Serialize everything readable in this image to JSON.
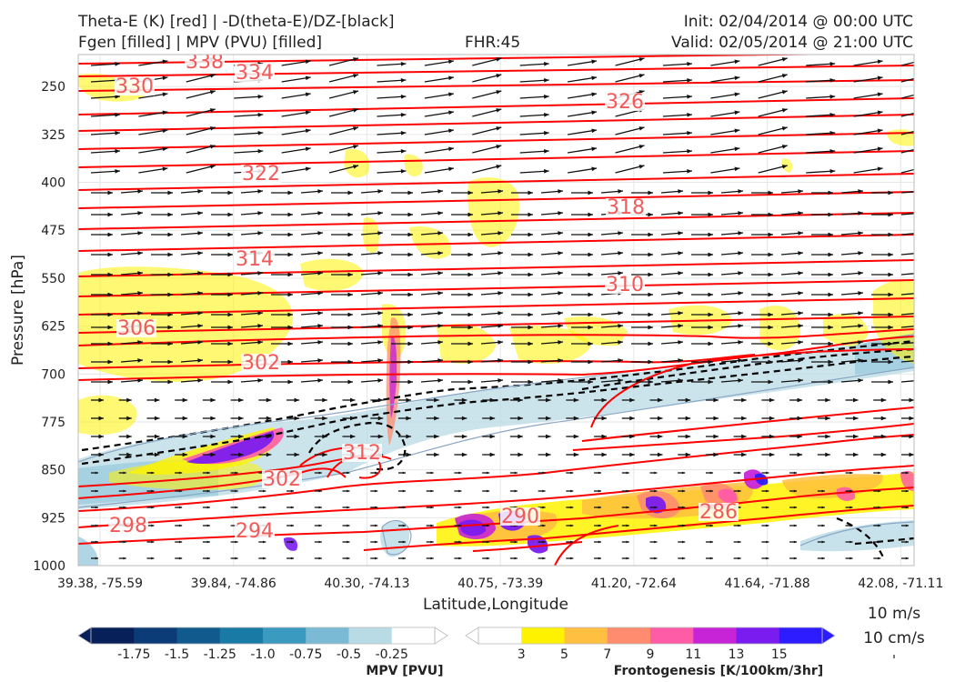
{
  "header": {
    "title_left_1": "Theta-E (K) [red] | -D(theta-E)/DZ-[black]",
    "title_left_2": "Fgen [filled] | MPV (PVU) [filled]",
    "fhr": "FHR:45",
    "init": "Init: 02/04/2014 @ 00:00 UTC",
    "valid": "Valid: 02/05/2014 @ 21:00 UTC"
  },
  "chart_data": {
    "type": "cross-section",
    "xlabel": "Latitude,Longitude",
    "ylabel": "Pressure [hPa]",
    "x_ticks": [
      "39.38, -75.59",
      "39.84, -74.86",
      "40.30, -74.13",
      "40.75, -73.39",
      "41.20, -72.64",
      "41.64, -71.88",
      "42.08, -71.11"
    ],
    "y_ticks": [
      250,
      325,
      400,
      475,
      550,
      625,
      700,
      775,
      850,
      925,
      1000
    ],
    "ylim": [
      1000,
      200
    ],
    "grid": true,
    "theta_e_contour_labels": [
      "338",
      "334",
      "330",
      "326",
      "322",
      "318",
      "314",
      "310",
      "306",
      "302",
      "302",
      "298",
      "294",
      "290",
      "286",
      "312"
    ],
    "theta_e_color": "#ff0000",
    "stability_contour_color": "#000000",
    "wind_vector_color": "#111111",
    "vector_scale": {
      "horizontal": "10 m/s",
      "vertical": "10 cm/s"
    },
    "mpv_colorbar": {
      "label": "MPV [PVU]",
      "ticks": [
        "-1.75",
        "-1.5",
        "-1.25",
        "-1.0",
        "-0.75",
        "-0.5",
        "-0.25"
      ],
      "colors": [
        "#08205a",
        "#0b3c77",
        "#115a8e",
        "#1a7aa6",
        "#3b9ac0",
        "#7bbad4",
        "#b9dbe6",
        "#ffffff"
      ]
    },
    "fgen_colorbar": {
      "label": "Frontogenesis [K/100km/3hr]",
      "ticks": [
        "3",
        "5",
        "7",
        "9",
        "11",
        "13",
        "15"
      ],
      "colors": [
        "#ffffff",
        "#fff200",
        "#ffbf40",
        "#ff8c6e",
        "#ff5ca8",
        "#c724d8",
        "#7a1cf0",
        "#2d1cff"
      ]
    }
  }
}
